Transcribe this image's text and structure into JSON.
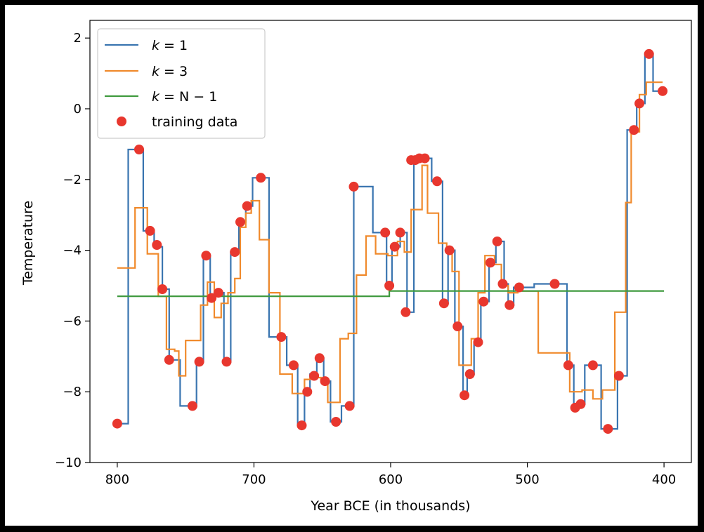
{
  "chart_data": {
    "type": "line",
    "xlabel": "Year BCE (in thousands)",
    "ylabel": "Temperature",
    "xlim": [
      820,
      380
    ],
    "ylim": [
      -10,
      2.5
    ],
    "x_ticks": [
      800,
      700,
      600,
      500,
      400
    ],
    "y_ticks": [
      2,
      0,
      -2,
      -4,
      -6,
      -8,
      -10
    ],
    "x_tick_labels": [
      "800",
      "700",
      "600",
      "500",
      "400"
    ],
    "y_tick_labels": [
      "2",
      "0",
      "−2",
      "−4",
      "−6",
      "−8",
      "−10"
    ],
    "legend_position": "upper-left",
    "grid": false,
    "series": [
      {
        "name": "k = 1",
        "legend_k": "k",
        "legend_rhs": " = 1",
        "color": "#3a75b0",
        "kind": "step",
        "points": [
          [
            800,
            -8.9
          ],
          [
            792,
            -8.9
          ],
          [
            792,
            -1.15
          ],
          [
            781,
            -1.15
          ],
          [
            781,
            -3.45
          ],
          [
            773,
            -3.45
          ],
          [
            773,
            -3.9
          ],
          [
            767,
            -3.9
          ],
          [
            767,
            -5.1
          ],
          [
            762,
            -5.1
          ],
          [
            762,
            -7.1
          ],
          [
            754,
            -7.1
          ],
          [
            754,
            -8.4
          ],
          [
            742,
            -8.4
          ],
          [
            742,
            -7.15
          ],
          [
            737,
            -7.15
          ],
          [
            737,
            -4.15
          ],
          [
            732,
            -4.15
          ],
          [
            732,
            -5.35
          ],
          [
            729,
            -5.35
          ],
          [
            729,
            -5.2
          ],
          [
            722,
            -5.2
          ],
          [
            722,
            -7.15
          ],
          [
            717,
            -7.15
          ],
          [
            717,
            -4.05
          ],
          [
            711,
            -4.05
          ],
          [
            711,
            -3.2
          ],
          [
            706,
            -3.2
          ],
          [
            706,
            -2.75
          ],
          [
            701,
            -2.75
          ],
          [
            701,
            -1.95
          ],
          [
            689,
            -1.95
          ],
          [
            689,
            -6.45
          ],
          [
            676,
            -6.45
          ],
          [
            676,
            -7.25
          ],
          [
            668,
            -7.25
          ],
          [
            668,
            -8.95
          ],
          [
            663,
            -8.95
          ],
          [
            663,
            -8.0
          ],
          [
            659,
            -8.0
          ],
          [
            659,
            -7.5
          ],
          [
            654,
            -7.5
          ],
          [
            654,
            -7.05
          ],
          [
            649,
            -7.05
          ],
          [
            649,
            -7.7
          ],
          [
            644,
            -7.7
          ],
          [
            644,
            -8.85
          ],
          [
            636,
            -8.85
          ],
          [
            636,
            -8.4
          ],
          [
            627,
            -8.4
          ],
          [
            627,
            -2.2
          ],
          [
            613,
            -2.2
          ],
          [
            613,
            -3.5
          ],
          [
            603,
            -3.5
          ],
          [
            603,
            -5.0
          ],
          [
            599,
            -5.0
          ],
          [
            599,
            -3.9
          ],
          [
            593,
            -3.9
          ],
          [
            593,
            -3.5
          ],
          [
            588,
            -3.5
          ],
          [
            588,
            -5.75
          ],
          [
            583,
            -5.75
          ],
          [
            583,
            -1.45
          ],
          [
            578,
            -1.45
          ],
          [
            578,
            -1.4
          ],
          [
            570,
            -1.4
          ],
          [
            570,
            -2.05
          ],
          [
            562,
            -2.05
          ],
          [
            562,
            -5.5
          ],
          [
            558,
            -5.5
          ],
          [
            558,
            -4.0
          ],
          [
            553,
            -4.0
          ],
          [
            553,
            -6.15
          ],
          [
            547,
            -6.15
          ],
          [
            547,
            -8.1
          ],
          [
            544,
            -8.1
          ],
          [
            544,
            -7.5
          ],
          [
            539,
            -7.5
          ],
          [
            539,
            -6.6
          ],
          [
            534,
            -6.6
          ],
          [
            534,
            -5.45
          ],
          [
            528,
            -5.45
          ],
          [
            528,
            -4.35
          ],
          [
            523,
            -4.35
          ],
          [
            523,
            -3.75
          ],
          [
            517,
            -3.75
          ],
          [
            517,
            -4.95
          ],
          [
            514,
            -4.95
          ],
          [
            514,
            -5.55
          ],
          [
            510,
            -5.55
          ],
          [
            510,
            -5.05
          ],
          [
            495,
            -5.05
          ],
          [
            495,
            -4.95
          ],
          [
            471,
            -4.95
          ],
          [
            471,
            -7.25
          ],
          [
            466,
            -7.25
          ],
          [
            466,
            -8.45
          ],
          [
            463,
            -8.45
          ],
          [
            463,
            -8.35
          ],
          [
            458,
            -8.35
          ],
          [
            458,
            -7.25
          ],
          [
            446,
            -7.25
          ],
          [
            446,
            -9.05
          ],
          [
            434,
            -9.05
          ],
          [
            434,
            -7.55
          ],
          [
            427,
            -7.55
          ],
          [
            427,
            -0.6
          ],
          [
            420,
            -0.6
          ],
          [
            420,
            0.15
          ],
          [
            414,
            0.15
          ],
          [
            414,
            1.55
          ],
          [
            408,
            1.55
          ],
          [
            408,
            0.5
          ],
          [
            400,
            0.5
          ]
        ]
      },
      {
        "name": "k = 3",
        "legend_k": "k",
        "legend_rhs": " = 3",
        "color": "#f08a2c",
        "kind": "step",
        "points": [
          [
            800,
            -4.5
          ],
          [
            787,
            -4.5
          ],
          [
            787,
            -2.8
          ],
          [
            778,
            -2.8
          ],
          [
            778,
            -4.1
          ],
          [
            770,
            -4.1
          ],
          [
            770,
            -5.3
          ],
          [
            764,
            -5.3
          ],
          [
            764,
            -6.8
          ],
          [
            758,
            -6.8
          ],
          [
            758,
            -6.85
          ],
          [
            755,
            -6.85
          ],
          [
            755,
            -7.55
          ],
          [
            750,
            -7.55
          ],
          [
            750,
            -6.55
          ],
          [
            739,
            -6.55
          ],
          [
            739,
            -5.55
          ],
          [
            734,
            -5.55
          ],
          [
            734,
            -4.9
          ],
          [
            729,
            -4.9
          ],
          [
            729,
            -5.9
          ],
          [
            724,
            -5.9
          ],
          [
            724,
            -5.5
          ],
          [
            719,
            -5.5
          ],
          [
            719,
            -5.2
          ],
          [
            714,
            -5.2
          ],
          [
            714,
            -4.8
          ],
          [
            710,
            -4.8
          ],
          [
            710,
            -3.35
          ],
          [
            706,
            -3.35
          ],
          [
            706,
            -2.95
          ],
          [
            702,
            -2.95
          ],
          [
            702,
            -2.6
          ],
          [
            696,
            -2.6
          ],
          [
            696,
            -3.7
          ],
          [
            689,
            -3.7
          ],
          [
            689,
            -5.2
          ],
          [
            681,
            -5.2
          ],
          [
            681,
            -7.5
          ],
          [
            672,
            -7.5
          ],
          [
            672,
            -8.05
          ],
          [
            663,
            -8.05
          ],
          [
            663,
            -7.65
          ],
          [
            659,
            -7.65
          ],
          [
            659,
            -7.6
          ],
          [
            651,
            -7.6
          ],
          [
            651,
            -7.65
          ],
          [
            646,
            -7.65
          ],
          [
            646,
            -8.3
          ],
          [
            637,
            -8.3
          ],
          [
            637,
            -6.5
          ],
          [
            631,
            -6.5
          ],
          [
            631,
            -6.35
          ],
          [
            625,
            -6.35
          ],
          [
            625,
            -4.7
          ],
          [
            618,
            -4.7
          ],
          [
            618,
            -3.6
          ],
          [
            611,
            -3.6
          ],
          [
            611,
            -4.1
          ],
          [
            602,
            -4.1
          ],
          [
            602,
            -4.15
          ],
          [
            595,
            -4.15
          ],
          [
            595,
            -3.75
          ],
          [
            590,
            -3.75
          ],
          [
            590,
            -4.05
          ],
          [
            585,
            -4.05
          ],
          [
            585,
            -2.85
          ],
          [
            577,
            -2.85
          ],
          [
            577,
            -1.6
          ],
          [
            573,
            -1.6
          ],
          [
            573,
            -2.95
          ],
          [
            565,
            -2.95
          ],
          [
            565,
            -3.8
          ],
          [
            559,
            -3.8
          ],
          [
            559,
            -4.0
          ],
          [
            555,
            -4.0
          ],
          [
            555,
            -4.6
          ],
          [
            550,
            -4.6
          ],
          [
            550,
            -7.25
          ],
          [
            546,
            -7.25
          ],
          [
            546,
            -7.25
          ],
          [
            541,
            -7.25
          ],
          [
            541,
            -6.5
          ],
          [
            536,
            -6.5
          ],
          [
            536,
            -5.2
          ],
          [
            531,
            -5.2
          ],
          [
            531,
            -4.15
          ],
          [
            524,
            -4.15
          ],
          [
            524,
            -4.4
          ],
          [
            519,
            -4.4
          ],
          [
            519,
            -5.0
          ],
          [
            514,
            -5.0
          ],
          [
            514,
            -5.2
          ],
          [
            507,
            -5.2
          ],
          [
            507,
            -5.15
          ],
          [
            492,
            -5.15
          ],
          [
            492,
            -6.9
          ],
          [
            475,
            -6.9
          ],
          [
            475,
            -6.9
          ],
          [
            469,
            -6.9
          ],
          [
            469,
            -8.0
          ],
          [
            460,
            -8.0
          ],
          [
            460,
            -7.95
          ],
          [
            452,
            -7.95
          ],
          [
            452,
            -8.2
          ],
          [
            445,
            -8.2
          ],
          [
            445,
            -7.95
          ],
          [
            436,
            -7.95
          ],
          [
            436,
            -5.75
          ],
          [
            428,
            -5.75
          ],
          [
            428,
            -2.65
          ],
          [
            424,
            -2.65
          ],
          [
            424,
            -0.65
          ],
          [
            418,
            -0.65
          ],
          [
            418,
            0.4
          ],
          [
            413,
            0.4
          ],
          [
            413,
            0.75
          ],
          [
            401,
            0.75
          ]
        ]
      },
      {
        "name": "k = N − 1",
        "legend_k": "k",
        "legend_rhs": " = N − 1",
        "color": "#3f9a3e",
        "kind": "step",
        "points": [
          [
            800,
            -5.3
          ],
          [
            601,
            -5.3
          ],
          [
            601,
            -5.15
          ],
          [
            400,
            -5.15
          ]
        ]
      }
    ],
    "scatter": {
      "name": "training data",
      "color": "#e8372e",
      "x": [
        800,
        784,
        776,
        771,
        767,
        762,
        745,
        740,
        735,
        731,
        726,
        720,
        714,
        710,
        705,
        695,
        680,
        671,
        665,
        661,
        656,
        652,
        648,
        640,
        630,
        627,
        604,
        601,
        597,
        593,
        589,
        585,
        582,
        579,
        575,
        566,
        561,
        557,
        551,
        546,
        542,
        536,
        532,
        527,
        522,
        518,
        513,
        506,
        480,
        470,
        465,
        461,
        452,
        441,
        433,
        422,
        418,
        411,
        401
      ],
      "y": [
        -8.9,
        -1.15,
        -3.45,
        -3.85,
        -5.1,
        -7.1,
        -8.4,
        -7.15,
        -4.15,
        -5.35,
        -5.2,
        -7.15,
        -4.05,
        -3.2,
        -2.75,
        -1.95,
        -6.45,
        -7.25,
        -8.95,
        -8.0,
        -7.55,
        -7.05,
        -7.7,
        -8.85,
        -8.4,
        -2.2,
        -3.5,
        -5.0,
        -3.9,
        -3.5,
        -5.75,
        -1.45,
        -1.45,
        -1.4,
        -1.4,
        -2.05,
        -5.5,
        -4.0,
        -6.15,
        -8.1,
        -7.5,
        -6.6,
        -5.45,
        -4.35,
        -3.75,
        -4.95,
        -5.55,
        -5.05,
        -4.95,
        -7.25,
        -8.45,
        -8.35,
        -7.25,
        -9.05,
        -7.55,
        -0.6,
        0.15,
        1.55,
        0.5
      ]
    }
  }
}
